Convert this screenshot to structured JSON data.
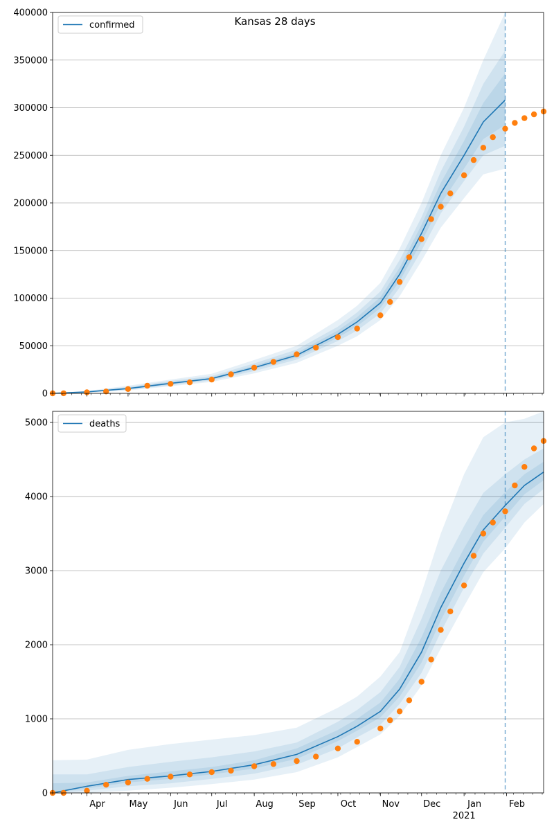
{
  "figure": {
    "title": "Kansas 28 days",
    "colors": {
      "model": "#1f77b4",
      "observed": "#ff7f0e",
      "band": "#1f77b4",
      "grid": "#b0b0b0"
    },
    "x_tick_labels": [
      "Apr",
      "May",
      "Jun",
      "Jul",
      "Aug",
      "Sep",
      "Oct",
      "Nov",
      "Dec",
      "Jan",
      "Feb"
    ],
    "x_year_label": "2021"
  },
  "chart_data": [
    {
      "type": "line",
      "legend": [
        "confirmed"
      ],
      "legend_position": "upper-left",
      "grid": "y",
      "x_range": [
        "2020-03-07",
        "2021-02-28"
      ],
      "ylim": [
        0,
        400000
      ],
      "yticks": [
        0,
        50000,
        100000,
        150000,
        200000,
        250000,
        300000,
        350000,
        400000
      ],
      "forecast_start": "2021-01-31",
      "series": [
        {
          "name": "confirmed",
          "style": "line",
          "x": [
            "2020-03-07",
            "2020-04-01",
            "2020-05-01",
            "2020-06-01",
            "2020-07-01",
            "2020-08-01",
            "2020-09-01",
            "2020-10-01",
            "2020-10-15",
            "2020-11-01",
            "2020-11-15",
            "2020-12-01",
            "2020-12-15",
            "2021-01-01",
            "2021-01-15",
            "2021-01-31"
          ],
          "y": [
            0,
            1500,
            5000,
            10500,
            15500,
            27000,
            40000,
            62000,
            75000,
            95000,
            125000,
            168000,
            210000,
            250000,
            285000,
            308000
          ],
          "bands": [
            {
              "lower": [
                0,
                800,
                3000,
                7500,
                12000,
                21000,
                32000,
                50000,
                60000,
                77000,
                102000,
                139000,
                174000,
                205000,
                230000,
                236000
              ],
              "upper": [
                0,
                2500,
                8000,
                14500,
                20500,
                35000,
                50000,
                77000,
                92000,
                116000,
                152000,
                200000,
                250000,
                300000,
                350000,
                400000
              ]
            },
            {
              "lower": [
                0,
                1000,
                3700,
                8500,
                13500,
                23500,
                35500,
                55000,
                66000,
                84000,
                111000,
                150000,
                189000,
                223000,
                250000,
                260000
              ],
              "upper": [
                0,
                2100,
                6800,
                13000,
                18200,
                31500,
                46000,
                70000,
                85000,
                107000,
                140000,
                185000,
                233000,
                280000,
                325000,
                360000
              ]
            },
            {
              "lower": [
                0,
                1200,
                4300,
                9500,
                14500,
                25500,
                37800,
                58500,
                70500,
                89500,
                118000,
                159000,
                199000,
                236000,
                267000,
                282000
              ],
              "upper": [
                0,
                1800,
                5800,
                11800,
                16700,
                29000,
                42500,
                66000,
                80000,
                101000,
                132000,
                177000,
                221000,
                265000,
                305000,
                336000
              ]
            }
          ]
        },
        {
          "name": "",
          "style": "markers",
          "x": [
            "2020-03-07",
            "2020-03-15",
            "2020-04-01",
            "2020-04-15",
            "2020-05-01",
            "2020-05-15",
            "2020-06-01",
            "2020-06-15",
            "2020-07-01",
            "2020-07-15",
            "2020-08-01",
            "2020-08-15",
            "2020-09-01",
            "2020-09-15",
            "2020-10-01",
            "2020-10-15",
            "2020-11-01",
            "2020-11-08",
            "2020-11-15",
            "2020-11-22",
            "2020-12-01",
            "2020-12-08",
            "2020-12-15",
            "2020-12-22",
            "2021-01-01",
            "2021-01-08",
            "2021-01-15",
            "2021-01-22",
            "2021-01-31",
            "2021-02-07",
            "2021-02-14",
            "2021-02-21",
            "2021-02-28"
          ],
          "y": [
            0,
            100,
            1100,
            2000,
            4500,
            8000,
            10000,
            11500,
            14500,
            20000,
            27000,
            33000,
            41000,
            48000,
            59000,
            68000,
            82000,
            96000,
            117000,
            143000,
            162000,
            183000,
            196000,
            210000,
            229000,
            245000,
            258000,
            269000,
            278000,
            284000,
            289000,
            293000,
            296000
          ]
        }
      ]
    },
    {
      "type": "line",
      "legend": [
        "deaths"
      ],
      "legend_position": "upper-left",
      "grid": "y",
      "x_range": [
        "2020-03-07",
        "2021-02-28"
      ],
      "ylim": [
        0,
        5150
      ],
      "yticks": [
        0,
        1000,
        2000,
        3000,
        4000,
        5000
      ],
      "forecast_start": "2021-01-31",
      "series": [
        {
          "name": "deaths",
          "style": "line",
          "x": [
            "2020-03-07",
            "2020-04-01",
            "2020-05-01",
            "2020-06-01",
            "2020-07-01",
            "2020-08-01",
            "2020-09-01",
            "2020-10-01",
            "2020-10-15",
            "2020-11-01",
            "2020-11-15",
            "2020-12-01",
            "2020-12-15",
            "2021-01-01",
            "2021-01-15",
            "2021-01-31",
            "2021-02-14",
            "2021-02-28"
          ],
          "y": [
            0,
            90,
            180,
            230,
            290,
            380,
            520,
            760,
            900,
            1100,
            1400,
            1900,
            2500,
            3100,
            3550,
            3880,
            4150,
            4330
          ],
          "bands": [
            {
              "lower": [
                0,
                0,
                30,
                70,
                120,
                180,
                280,
                480,
                620,
                790,
                1040,
                1450,
                1950,
                2520,
                2980,
                3300,
                3650,
                3900
              ],
              "upper": [
                440,
                450,
                580,
                660,
                720,
                780,
                880,
                1150,
                1300,
                1570,
                1900,
                2700,
                3500,
                4300,
                4800,
                5000,
                5050,
                5150
              ]
            },
            {
              "lower": [
                0,
                30,
                90,
                130,
                190,
                260,
                380,
                600,
                750,
                920,
                1200,
                1620,
                2170,
                2770,
                3230,
                3580,
                3900,
                4100
              ],
              "upper": [
                250,
                250,
                350,
                420,
                480,
                560,
                680,
                960,
                1120,
                1360,
                1700,
                2350,
                3000,
                3600,
                4050,
                4300,
                4500,
                4650
              ]
            },
            {
              "lower": [
                0,
                60,
                140,
                190,
                250,
                330,
                460,
                700,
                840,
                1020,
                1300,
                1760,
                2330,
                2930,
                3390,
                3730,
                4030,
                4220
              ],
              "upper": [
                130,
                140,
                230,
                290,
                350,
                440,
                600,
                850,
                1000,
                1220,
                1540,
                2100,
                2700,
                3300,
                3750,
                4060,
                4300,
                4470
              ]
            }
          ]
        },
        {
          "name": "",
          "style": "markers",
          "x": [
            "2020-03-07",
            "2020-03-15",
            "2020-04-01",
            "2020-04-15",
            "2020-05-01",
            "2020-05-15",
            "2020-06-01",
            "2020-06-15",
            "2020-07-01",
            "2020-07-15",
            "2020-08-01",
            "2020-08-15",
            "2020-09-01",
            "2020-09-15",
            "2020-10-01",
            "2020-10-15",
            "2020-11-01",
            "2020-11-08",
            "2020-11-15",
            "2020-11-22",
            "2020-12-01",
            "2020-12-08",
            "2020-12-15",
            "2020-12-22",
            "2021-01-01",
            "2021-01-08",
            "2021-01-15",
            "2021-01-22",
            "2021-01-31",
            "2021-02-07",
            "2021-02-14",
            "2021-02-21",
            "2021-02-28"
          ],
          "y": [
            0,
            0,
            30,
            110,
            140,
            190,
            220,
            250,
            280,
            300,
            360,
            390,
            430,
            490,
            600,
            690,
            870,
            980,
            1100,
            1250,
            1500,
            1800,
            2200,
            2450,
            2800,
            3200,
            3500,
            3650,
            3800,
            4150,
            4400,
            4650,
            4750
          ]
        }
      ]
    }
  ]
}
